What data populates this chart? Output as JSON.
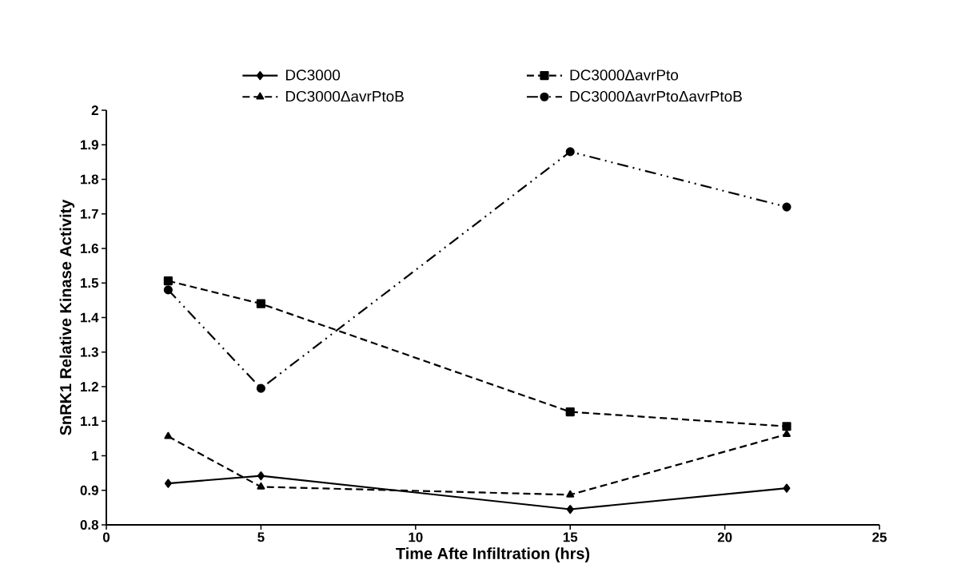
{
  "chart_data": {
    "type": "line",
    "xlabel": "Time Afte Infiltration (hrs)",
    "ylabel": "SnRK1 Relative Kinase Activity",
    "x": [
      2,
      5,
      15,
      22
    ],
    "series": [
      {
        "name": "DC3000",
        "color": "#000000",
        "marker": "diamond",
        "line_style": "solid",
        "values": [
          0.92,
          0.942,
          0.845,
          0.906
        ]
      },
      {
        "name": "DC3000ΔavrPto",
        "color": "#000000",
        "marker": "square",
        "line_style": "dashed",
        "values": [
          1.506,
          1.44,
          1.127,
          1.085
        ]
      },
      {
        "name": "DC3000ΔavrPtoB",
        "color": "#000000",
        "marker": "triangle",
        "line_style": "dashed",
        "values": [
          1.056,
          0.91,
          0.887,
          1.062
        ]
      },
      {
        "name": "DC3000ΔavrPtoΔavrPtoB",
        "color": "#000000",
        "marker": "circle",
        "line_style": "dashdotdotted",
        "values": [
          1.48,
          1.195,
          1.88,
          1.72
        ]
      }
    ],
    "xlim": [
      0,
      25
    ],
    "xticks": [
      0,
      5,
      10,
      15,
      20,
      25
    ],
    "ylim": [
      0.8,
      2
    ],
    "yticks": [
      0.8,
      0.9,
      1,
      1.1,
      1.2,
      1.3,
      1.4,
      1.5,
      1.6,
      1.7,
      1.8,
      1.9,
      2
    ],
    "legend": "top",
    "grid": false
  }
}
